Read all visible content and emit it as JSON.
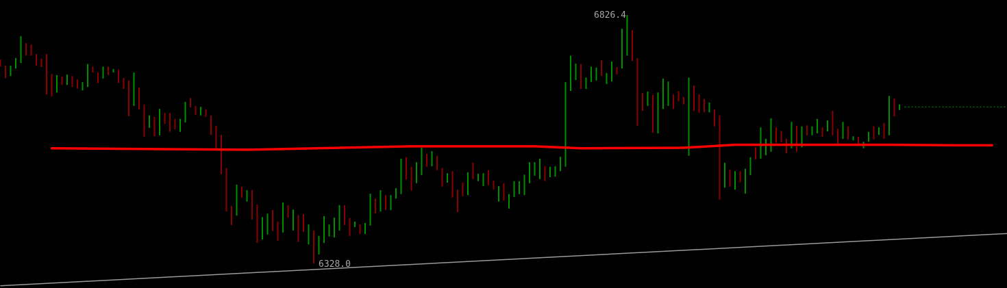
{
  "chart_data": {
    "type": "bar",
    "style": "high-low bars",
    "colors": {
      "up": "#008f00",
      "down": "#8b0000",
      "annotation_line": "#ff0000",
      "trendline": "#9a9a9a",
      "last_price_line": "#008f00",
      "background": "#000000",
      "label": "#a8a8a8"
    },
    "grid": false,
    "annotations": {
      "high_label": "6826.4",
      "low_label": "6328.0"
    },
    "bars": [
      [
        6737,
        6723,
        -1
      ],
      [
        6725,
        6700,
        -1
      ],
      [
        6725,
        6704,
        1
      ],
      [
        6740,
        6719,
        1
      ],
      [
        6784,
        6730,
        1
      ],
      [
        6770,
        6745,
        -1
      ],
      [
        6767,
        6745,
        -1
      ],
      [
        6748,
        6725,
        -1
      ],
      [
        6739,
        6722,
        -1
      ],
      [
        6748,
        6667,
        -1
      ],
      [
        6708,
        6663,
        -1
      ],
      [
        6706,
        6671,
        1
      ],
      [
        6703,
        6686,
        -1
      ],
      [
        6707,
        6686,
        1
      ],
      [
        6704,
        6682,
        -1
      ],
      [
        6697,
        6679,
        -1
      ],
      [
        6692,
        6675,
        1
      ],
      [
        6728,
        6682,
        1
      ],
      [
        6723,
        6711,
        -1
      ],
      [
        6711,
        6690,
        -1
      ],
      [
        6723,
        6699,
        1
      ],
      [
        6723,
        6706,
        -1
      ],
      [
        6718,
        6711,
        1
      ],
      [
        6717,
        6690,
        -1
      ],
      [
        6700,
        6678,
        -1
      ],
      [
        6695,
        6623,
        -1
      ],
      [
        6711,
        6644,
        1
      ],
      [
        6681,
        6637,
        -1
      ],
      [
        6647,
        6582,
        -1
      ],
      [
        6625,
        6600,
        1
      ],
      [
        6622,
        6583,
        -1
      ],
      [
        6638,
        6585,
        1
      ],
      [
        6630,
        6608,
        -1
      ],
      [
        6630,
        6592,
        -1
      ],
      [
        6618,
        6597,
        -1
      ],
      [
        6618,
        6592,
        1
      ],
      [
        6652,
        6611,
        1
      ],
      [
        6660,
        6641,
        -1
      ],
      [
        6644,
        6626,
        -1
      ],
      [
        6642,
        6625,
        1
      ],
      [
        6637,
        6622,
        -1
      ],
      [
        6625,
        6586,
        -1
      ],
      [
        6604,
        6555,
        -1
      ],
      [
        6586,
        6507,
        -1
      ],
      [
        6519,
        6432,
        -1
      ],
      [
        6443,
        6405,
        -1
      ],
      [
        6486,
        6424,
        1
      ],
      [
        6482,
        6460,
        -1
      ],
      [
        6475,
        6452,
        1
      ],
      [
        6475,
        6416,
        -1
      ],
      [
        6446,
        6369,
        -1
      ],
      [
        6421,
        6376,
        1
      ],
      [
        6428,
        6386,
        1
      ],
      [
        6435,
        6393,
        -1
      ],
      [
        6412,
        6373,
        -1
      ],
      [
        6450,
        6390,
        1
      ],
      [
        6445,
        6420,
        -1
      ],
      [
        6436,
        6394,
        1
      ],
      [
        6425,
        6371,
        -1
      ],
      [
        6427,
        6391,
        -1
      ],
      [
        6406,
        6366,
        1
      ],
      [
        6394,
        6328.0,
        -1
      ],
      [
        6383,
        6346,
        1
      ],
      [
        6423,
        6369,
        1
      ],
      [
        6406,
        6382,
        1
      ],
      [
        6420,
        6380,
        1
      ],
      [
        6445,
        6394,
        1
      ],
      [
        6445,
        6405,
        -1
      ],
      [
        6419,
        6383,
        -1
      ],
      [
        6412,
        6401,
        1
      ],
      [
        6406,
        6387,
        -1
      ],
      [
        6409,
        6387,
        1
      ],
      [
        6468,
        6404,
        1
      ],
      [
        6458,
        6428,
        -1
      ],
      [
        6475,
        6432,
        1
      ],
      [
        6465,
        6435,
        -1
      ],
      [
        6465,
        6435,
        1
      ],
      [
        6479,
        6458,
        1
      ],
      [
        6538,
        6467,
        1
      ],
      [
        6541,
        6496,
        -1
      ],
      [
        6522,
        6474,
        -1
      ],
      [
        6531,
        6489,
        1
      ],
      [
        6560,
        6505,
        1
      ],
      [
        6548,
        6522,
        -1
      ],
      [
        6553,
        6523,
        1
      ],
      [
        6544,
        6515,
        -1
      ],
      [
        6519,
        6482,
        -1
      ],
      [
        6509,
        6490,
        1
      ],
      [
        6513,
        6460,
        -1
      ],
      [
        6476,
        6431,
        -1
      ],
      [
        6490,
        6463,
        -1
      ],
      [
        6511,
        6465,
        1
      ],
      [
        6530,
        6497,
        -1
      ],
      [
        6508,
        6493,
        1
      ],
      [
        6509,
        6483,
        1
      ],
      [
        6515,
        6485,
        -1
      ],
      [
        6494,
        6476,
        -1
      ],
      [
        6483,
        6452,
        1
      ],
      [
        6489,
        6454,
        -1
      ],
      [
        6467,
        6438,
        1
      ],
      [
        6493,
        6461,
        1
      ],
      [
        6493,
        6467,
        1
      ],
      [
        6506,
        6465,
        1
      ],
      [
        6531,
        6489,
        1
      ],
      [
        6531,
        6504,
        1
      ],
      [
        6538,
        6497,
        1
      ],
      [
        6523,
        6493,
        -1
      ],
      [
        6522,
        6501,
        1
      ],
      [
        6523,
        6502,
        1
      ],
      [
        6542,
        6513,
        1
      ],
      [
        6692,
        6522,
        1
      ],
      [
        6745,
        6674,
        1
      ],
      [
        6729,
        6696,
        1
      ],
      [
        6728,
        6678,
        -1
      ],
      [
        6701,
        6678,
        1
      ],
      [
        6723,
        6692,
        1
      ],
      [
        6721,
        6695,
        1
      ],
      [
        6736,
        6704,
        -1
      ],
      [
        6710,
        6688,
        1
      ],
      [
        6733,
        6693,
        1
      ],
      [
        6722,
        6707,
        -1
      ],
      [
        6799,
        6719,
        1
      ],
      [
        6826.4,
        6745,
        1
      ],
      [
        6796,
        6734,
        -1
      ],
      [
        6740,
        6604,
        -1
      ],
      [
        6670,
        6634,
        -1
      ],
      [
        6673,
        6644,
        1
      ],
      [
        6666,
        6590,
        -1
      ],
      [
        6671,
        6589,
        1
      ],
      [
        6699,
        6638,
        1
      ],
      [
        6693,
        6644,
        1
      ],
      [
        6667,
        6638,
        -1
      ],
      [
        6674,
        6653,
        -1
      ],
      [
        6662,
        6647,
        -1
      ],
      [
        6701,
        6544,
        1
      ],
      [
        6685,
        6634,
        -1
      ],
      [
        6667,
        6630,
        -1
      ],
      [
        6658,
        6631,
        -1
      ],
      [
        6651,
        6631,
        1
      ],
      [
        6637,
        6603,
        -1
      ],
      [
        6625,
        6456,
        -1
      ],
      [
        6530,
        6480,
        1
      ],
      [
        6516,
        6482,
        -1
      ],
      [
        6513,
        6476,
        1
      ],
      [
        6513,
        6491,
        -1
      ],
      [
        6518,
        6468,
        1
      ],
      [
        6541,
        6505,
        1
      ],
      [
        6561,
        6537,
        -1
      ],
      [
        6601,
        6538,
        1
      ],
      [
        6578,
        6545,
        1
      ],
      [
        6619,
        6552,
        1
      ],
      [
        6601,
        6570,
        -1
      ],
      [
        6594,
        6571,
        -1
      ],
      [
        6578,
        6549,
        -1
      ],
      [
        6612,
        6559,
        1
      ],
      [
        6604,
        6552,
        -1
      ],
      [
        6603,
        6561,
        1
      ],
      [
        6605,
        6585,
        -1
      ],
      [
        6603,
        6585,
        1
      ],
      [
        6618,
        6589,
        1
      ],
      [
        6601,
        6582,
        -1
      ],
      [
        6615,
        6593,
        1
      ],
      [
        6634,
        6585,
        -1
      ],
      [
        6598,
        6568,
        -1
      ],
      [
        6612,
        6578,
        1
      ],
      [
        6603,
        6577,
        -1
      ],
      [
        6583,
        6575,
        1
      ],
      [
        6582,
        6564,
        -1
      ],
      [
        6572,
        6559,
        1
      ],
      [
        6592,
        6572,
        1
      ],
      [
        6603,
        6577,
        -1
      ],
      [
        6601,
        6586,
        1
      ],
      [
        6610,
        6578,
        -1
      ],
      [
        6664,
        6585,
        1
      ],
      [
        6659,
        6623,
        -1
      ],
      [
        6647,
        6636,
        1
      ]
    ],
    "annotation_line": [
      [
        11,
        6559
      ],
      [
        49,
        6556
      ],
      [
        81,
        6563
      ],
      [
        105,
        6563
      ],
      [
        114,
        6559
      ],
      [
        134,
        6560
      ],
      [
        144,
        6566
      ],
      [
        174,
        6566
      ],
      [
        188,
        6565
      ],
      [
        194,
        6565
      ]
    ],
    "trendline": [
      [
        1,
        6283
      ],
      [
        197,
        6388
      ]
    ],
    "last_price_line": {
      "from": 177,
      "to": 197,
      "price": 6642
    }
  }
}
